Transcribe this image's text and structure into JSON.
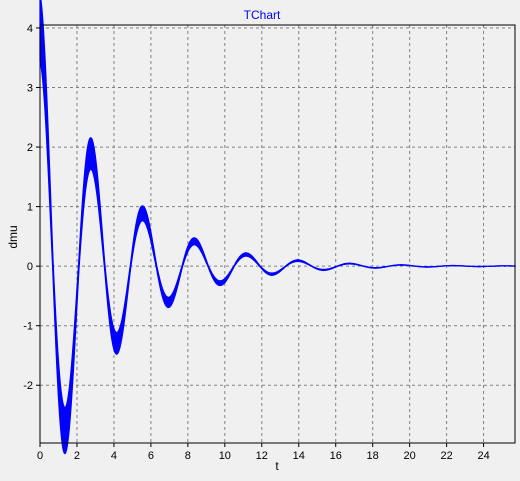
{
  "chart_data": {
    "type": "line",
    "title": "TChart",
    "xlabel": "t",
    "ylabel": "dmu",
    "xlim": [
      0,
      25.7
    ],
    "ylim": [
      -2.97,
      4.05
    ],
    "x_ticks": [
      0,
      2,
      4,
      6,
      8,
      10,
      12,
      14,
      16,
      18,
      20,
      22,
      24
    ],
    "y_ticks": [
      -2,
      -1,
      0,
      1,
      2,
      3,
      4
    ],
    "x_tick_labels": [
      "0",
      "2",
      "4",
      "6",
      "8",
      "10",
      "12",
      "14",
      "16",
      "18",
      "20",
      "22",
      "24"
    ],
    "y_tick_labels": [
      "-2",
      "-1",
      "0",
      "1",
      "2",
      "3",
      "4"
    ],
    "grid": true,
    "grid_style": "dashed",
    "legend": "none",
    "series_color": "#0000ff",
    "background": "#f0f0f0",
    "model": {
      "amplitude": 4.0,
      "decay": 0.27,
      "period": 2.8,
      "band_half_width": 0.04
    },
    "series": [
      {
        "x": [
          0,
          1.3,
          2.7,
          4.1,
          5.55,
          6.95,
          8.35,
          9.75,
          11.15,
          12.55,
          13.95,
          15.35,
          16.75,
          18.15,
          19.55,
          20.95,
          22.35,
          23.75,
          25.15,
          25.7
        ],
        "values": [
          4.0,
          -2.8,
          1.95,
          -1.35,
          0.95,
          -0.6,
          0.45,
          -0.32,
          0.22,
          -0.15,
          0.11,
          -0.07,
          0.05,
          -0.03,
          0.02,
          -0.01,
          0.01,
          0.0,
          0.0,
          0.0
        ]
      }
    ]
  }
}
